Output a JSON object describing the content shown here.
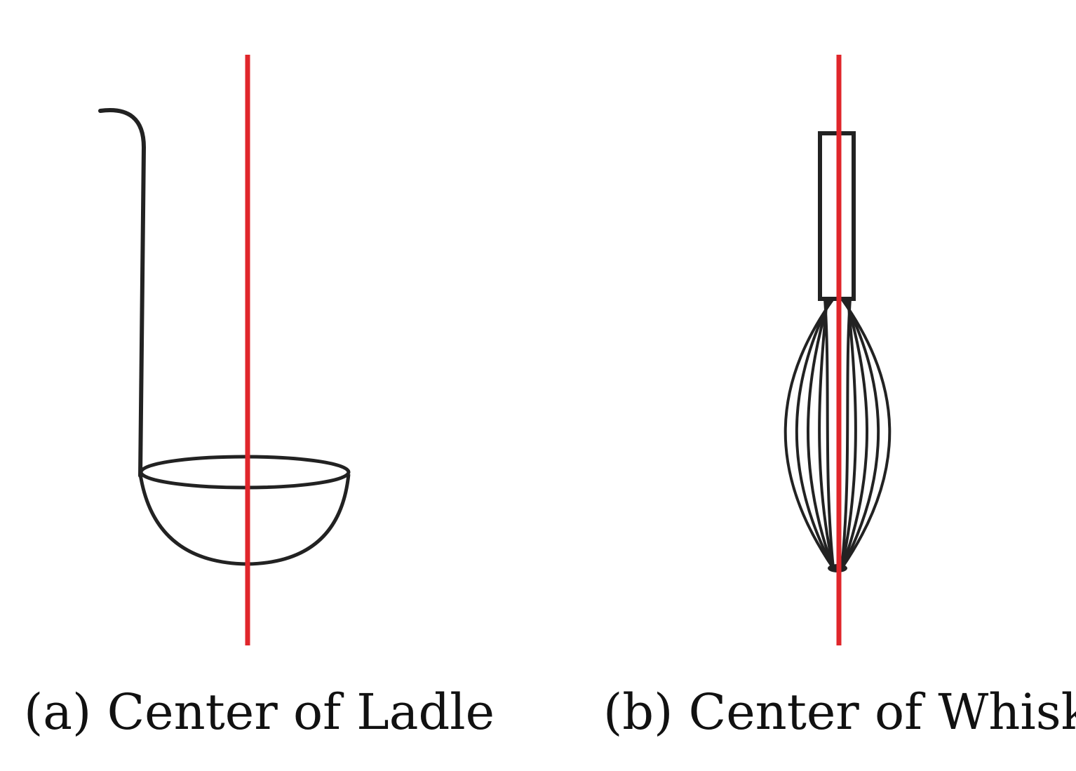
{
  "colors": {
    "center_line": "#e0262b",
    "outline": "#222222",
    "background": "#ffffff"
  },
  "panels": [
    {
      "label": "a",
      "caption": "(a) Center of Ladle",
      "object": "ladle"
    },
    {
      "label": "b",
      "caption": "(b) Center of Whisk",
      "object": "whisk"
    }
  ]
}
